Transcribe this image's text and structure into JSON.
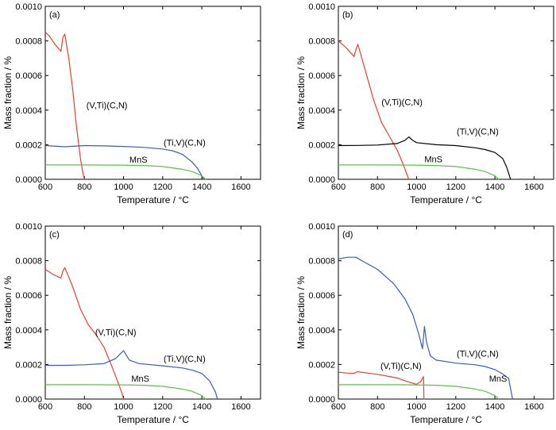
{
  "chart_data": [
    {
      "type": "line",
      "panel_label": "(a)",
      "xlabel": "Temperature / °C",
      "ylabel": "Mass fraction / %",
      "xlim": [
        600,
        1700
      ],
      "ylim": [
        0,
        0.001
      ],
      "xticks": [
        "600",
        "800",
        "1000",
        "1200",
        "1400",
        "1600"
      ],
      "yticks": [
        "0.0000",
        "0.0002",
        "0.0004",
        "0.0006",
        "0.0008",
        "0.0010"
      ],
      "series": [
        {
          "name": "(V,Ti)(C,N)",
          "color": "#e8402a",
          "x": [
            600,
            620,
            650,
            680,
            690,
            700,
            720,
            740,
            760,
            780,
            795,
            800
          ],
          "y": [
            0.00085,
            0.00083,
            0.00078,
            0.00074,
            0.00082,
            0.00084,
            0.0007,
            0.00052,
            0.0003,
            0.00012,
            2e-05,
            0.0
          ]
        },
        {
          "name": "(Ti,V)(C,N)",
          "color": "#3b5db8",
          "x": [
            600,
            700,
            800,
            900,
            1000,
            1100,
            1200,
            1250,
            1300,
            1350,
            1380,
            1400,
            1410
          ],
          "y": [
            0.000195,
            0.000188,
            0.000195,
            0.000193,
            0.00019,
            0.000185,
            0.000175,
            0.000165,
            0.000145,
            0.0001,
            6e-05,
            2e-05,
            0.0
          ]
        },
        {
          "name": "MnS",
          "color": "#5cc24a",
          "x": [
            600,
            800,
            1000,
            1100,
            1200,
            1300,
            1350,
            1400,
            1420
          ],
          "y": [
            8.3e-05,
            8.3e-05,
            8.2e-05,
            8e-05,
            7.4e-05,
            5.8e-05,
            4.5e-05,
            2e-05,
            0.0
          ]
        }
      ],
      "annotations": [
        {
          "text": "(V,Ti)(C,N)",
          "x": 810,
          "y": 0.00041
        },
        {
          "text": "(Ti,V)(C,N)",
          "x": 1205,
          "y": 0.000195
        },
        {
          "text": "MnS",
          "x": 1030,
          "y": 9.6e-05
        }
      ]
    },
    {
      "type": "line",
      "panel_label": "(b)",
      "xlabel": "Temperature / °C",
      "ylabel": "Mass fraction / %",
      "xlim": [
        600,
        1700
      ],
      "ylim": [
        0,
        0.001
      ],
      "xticks": [
        "600",
        "800",
        "1000",
        "1200",
        "1400",
        "1600"
      ],
      "yticks": [
        "0.0000",
        "0.0002",
        "0.0004",
        "0.0006",
        "0.0008",
        "0.0010"
      ],
      "series": [
        {
          "name": "(V,Ti)(C,N)",
          "color": "#e8402a",
          "x": [
            600,
            640,
            680,
            690,
            700,
            740,
            780,
            820,
            860,
            900,
            930,
            950,
            960
          ],
          "y": [
            0.0008,
            0.00076,
            0.00071,
            0.00075,
            0.00078,
            0.00062,
            0.00046,
            0.00033,
            0.00025,
            0.00017,
            9e-05,
            3e-05,
            0.0
          ]
        },
        {
          "name": "(Ti,V)(C,N)",
          "color": "#000000",
          "x": [
            600,
            700,
            800,
            900,
            940,
            960,
            980,
            1000,
            1100,
            1200,
            1300,
            1350,
            1400,
            1440,
            1460,
            1480
          ],
          "y": [
            0.000195,
            0.000196,
            0.000198,
            0.000207,
            0.000225,
            0.000245,
            0.000225,
            0.000212,
            0.0002,
            0.000195,
            0.000182,
            0.000172,
            0.000155,
            0.00012,
            7e-05,
            0.0
          ]
        },
        {
          "name": "MnS",
          "color": "#5cc24a",
          "x": [
            600,
            800,
            1000,
            1100,
            1200,
            1300,
            1350,
            1400,
            1420
          ],
          "y": [
            8.3e-05,
            8.3e-05,
            8.2e-05,
            8e-05,
            7.4e-05,
            5.8e-05,
            4.5e-05,
            2e-05,
            0.0
          ]
        }
      ],
      "annotations": [
        {
          "text": "(V,Ti)(C,N)",
          "x": 820,
          "y": 0.00043
        },
        {
          "text": "(Ti,V)(C,N)",
          "x": 1205,
          "y": 0.00026
        },
        {
          "text": "MnS",
          "x": 1040,
          "y": 9.8e-05
        }
      ]
    },
    {
      "type": "line",
      "panel_label": "(c)",
      "xlabel": "Temperature / °C",
      "ylabel": "Mass fraction / %",
      "xlim": [
        600,
        1700
      ],
      "ylim": [
        0,
        0.001
      ],
      "xticks": [
        "600",
        "800",
        "1000",
        "1200",
        "1400",
        "1600"
      ],
      "yticks": [
        "0.0000",
        "0.0002",
        "0.0004",
        "0.0006",
        "0.0008",
        "0.0010"
      ],
      "series": [
        {
          "name": "(V,Ti)(C,N)",
          "color": "#e8402a",
          "x": [
            600,
            640,
            680,
            690,
            700,
            740,
            780,
            820,
            860,
            900,
            940,
            970,
            990,
            1000
          ],
          "y": [
            0.00075,
            0.00072,
            0.0007,
            0.00074,
            0.00076,
            0.00065,
            0.00052,
            0.00043,
            0.00037,
            0.0003,
            0.00019,
            0.0001,
            4e-05,
            0.0
          ]
        },
        {
          "name": "(Ti,V)(C,N)",
          "color": "#3b5db8",
          "x": [
            600,
            700,
            800,
            900,
            960,
            1000,
            1030,
            1080,
            1200,
            1300,
            1350,
            1400,
            1440,
            1470,
            1480
          ],
          "y": [
            0.000195,
            0.000195,
            0.000198,
            0.000205,
            0.000235,
            0.00028,
            0.000225,
            0.000205,
            0.000192,
            0.00018,
            0.000168,
            0.000148,
            0.000105,
            4e-05,
            0.0
          ]
        },
        {
          "name": "MnS",
          "color": "#5cc24a",
          "x": [
            600,
            800,
            1000,
            1100,
            1200,
            1300,
            1350,
            1400,
            1420
          ],
          "y": [
            8.3e-05,
            8.3e-05,
            8.2e-05,
            8e-05,
            7.4e-05,
            5.8e-05,
            4.5e-05,
            2e-05,
            0.0
          ]
        }
      ],
      "annotations": [
        {
          "text": "(V,Ti)(C,N)",
          "x": 855,
          "y": 0.00037
        },
        {
          "text": "(Ti,V)(C,N)",
          "x": 1205,
          "y": 0.000215
        },
        {
          "text": "MnS",
          "x": 1040,
          "y": 0.0001
        }
      ]
    },
    {
      "type": "line",
      "panel_label": "(d)",
      "xlabel": "Temperature / °C",
      "ylabel": "Mass fraction / %",
      "xlim": [
        600,
        1700
      ],
      "ylim": [
        0,
        0.001
      ],
      "xticks": [
        "600",
        "800",
        "1000",
        "1200",
        "1400",
        "1600"
      ],
      "yticks": [
        "0.0000",
        "0.0002",
        "0.0004",
        "0.0006",
        "0.0008",
        "0.0010"
      ],
      "series": [
        {
          "name": "(V,Ti)(C,N)",
          "color": "#e8402a",
          "x": [
            600,
            650,
            680,
            690,
            700,
            750,
            800,
            900,
            960,
            1000,
            1020,
            1035,
            1037,
            1040
          ],
          "y": [
            0.000155,
            0.00015,
            0.000148,
            0.000155,
            0.000158,
            0.00015,
            0.000143,
            0.000122,
            9.8e-05,
            8.5e-05,
            0.0001,
            0.00013,
            0.0,
            0.0
          ]
        },
        {
          "name": "(Ti,V)(C,N)",
          "color": "#3b5db8",
          "x": [
            600,
            650,
            690,
            720,
            800,
            880,
            940,
            980,
            1010,
            1030,
            1040,
            1050,
            1070,
            1100,
            1200,
            1300,
            1350,
            1400,
            1440,
            1470,
            1480,
            1490
          ],
          "y": [
            0.00081,
            0.00082,
            0.00082,
            0.0008,
            0.00075,
            0.00067,
            0.00058,
            0.00049,
            0.00038,
            0.00029,
            0.00042,
            0.00033,
            0.00025,
            0.000225,
            0.000208,
            0.000198,
            0.000188,
            0.00017,
            0.000145,
            0.00012,
            6e-05,
            0.0
          ]
        },
        {
          "name": "MnS",
          "color": "#5cc24a",
          "x": [
            600,
            800,
            1000,
            1100,
            1200,
            1300,
            1350,
            1400,
            1420
          ],
          "y": [
            8.3e-05,
            8.3e-05,
            8.2e-05,
            8e-05,
            7.4e-05,
            5.8e-05,
            4.5e-05,
            2e-05,
            0.0
          ]
        }
      ],
      "annotations": [
        {
          "text": "(V,Ti)(C,N)",
          "x": 815,
          "y": 0.000175
        },
        {
          "text": "(Ti,V)(C,N)",
          "x": 1205,
          "y": 0.000245
        },
        {
          "text": "MnS",
          "x": 1370,
          "y": 0.0001
        }
      ]
    }
  ]
}
